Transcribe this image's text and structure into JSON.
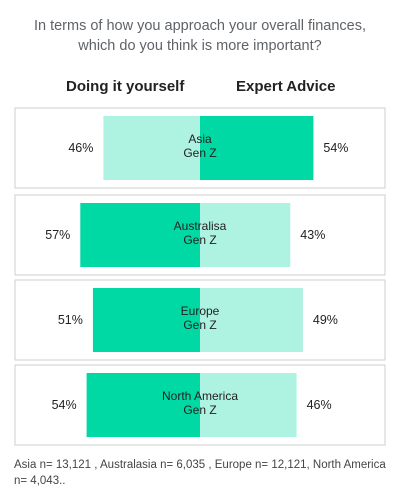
{
  "title": "In terms of how you approach your overall finances, which do you think is more important?",
  "colors": {
    "dominant": "#00d9a3",
    "secondary": "#aef2e2",
    "panel_border": "#cfcfcf",
    "text": "#222222"
  },
  "chart_data": {
    "type": "bar",
    "orientation": "diverging-horizontal",
    "series_labels": [
      "Doing it yourself",
      "Expert Advice"
    ],
    "categories": [
      "Asia\nGen Z",
      "Australisa\nGen Z",
      "Europe\nGen Z",
      "North America\nGen Z"
    ],
    "series": [
      {
        "name": "Doing it yourself",
        "values": [
          46,
          57,
          51,
          54
        ]
      },
      {
        "name": "Expert Advice",
        "values": [
          54,
          43,
          49,
          46
        ]
      }
    ],
    "value_suffix": "%",
    "grid": false,
    "legend": "top column headers"
  },
  "footnote": "Asia n= 13,121 , Australasia n= 6,035 , Europe n= 12,121, North America n= 4,043.."
}
